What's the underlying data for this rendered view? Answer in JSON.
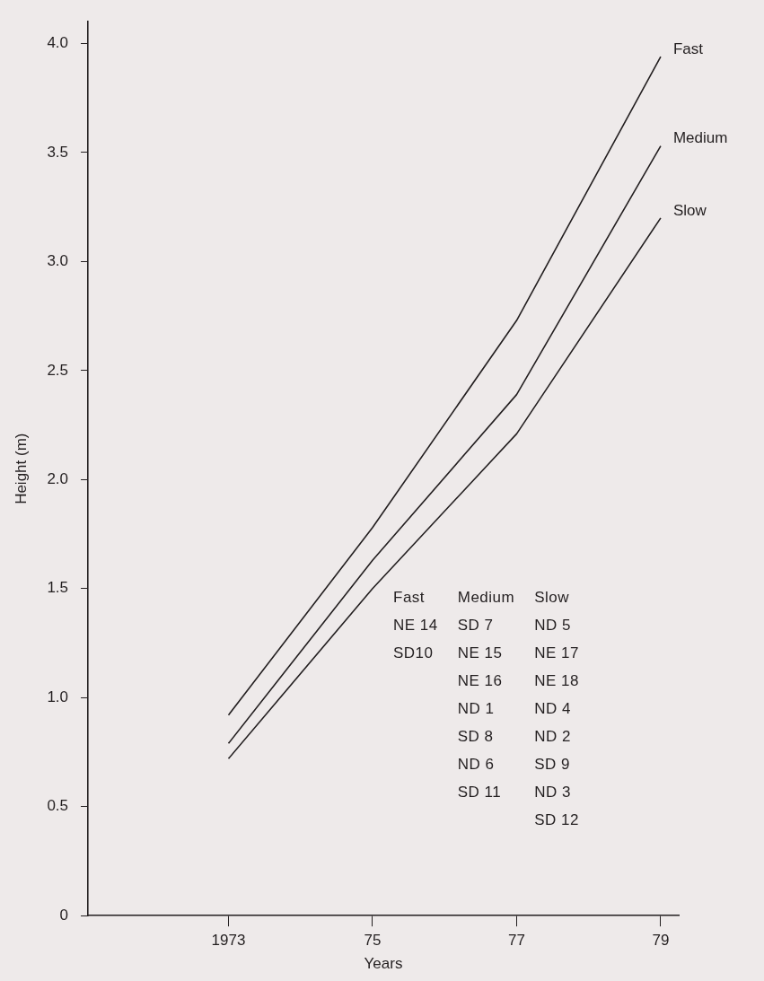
{
  "chart_data": {
    "type": "line",
    "xlabel": "Years",
    "ylabel": "Height (m)",
    "x": [
      1973,
      1975,
      1977,
      1979
    ],
    "series": [
      {
        "name": "Fast",
        "color": "#231f20",
        "values": [
          0.92,
          1.78,
          2.73,
          3.94
        ]
      },
      {
        "name": "Medium",
        "color": "#231f20",
        "values": [
          0.79,
          1.63,
          2.39,
          3.53
        ]
      },
      {
        "name": "Slow",
        "color": "#231f20",
        "values": [
          0.72,
          1.5,
          2.21,
          3.2
        ]
      }
    ],
    "xlim": [
      1971.05,
      1979.25
    ],
    "xticks": [
      {
        "value": 1973,
        "label": "1973"
      },
      {
        "value": 1975,
        "label": "75"
      },
      {
        "value": 1977,
        "label": "77"
      },
      {
        "value": 1979,
        "label": "79"
      }
    ],
    "ylim": [
      0,
      4.1
    ],
    "yticks": [
      0,
      {
        "value": 0.5,
        "label": "0.5"
      },
      {
        "value": 1,
        "label": "1.0"
      },
      {
        "value": 1.5,
        "label": "1.5"
      },
      {
        "value": 2,
        "label": "2.0"
      },
      {
        "value": 2.5,
        "label": "2.5"
      },
      {
        "value": 3,
        "label": "3.0"
      },
      {
        "value": 3.5,
        "label": "3.5"
      },
      {
        "value": 4,
        "label": "4.0"
      }
    ],
    "annotations": [
      "Fast\nNE 14\nSD10",
      "Medium\nSD 7\nNE 15\nNE 16\nND 1\nSD 8\nND 6\nSD 11",
      "Slow\nND 5\nNE 17\nNE 18\nND 4\nND 2\nSD 9\nND 3\nSD 12"
    ],
    "grid": false,
    "legend": false,
    "marker": "none",
    "line_style": "solid"
  }
}
